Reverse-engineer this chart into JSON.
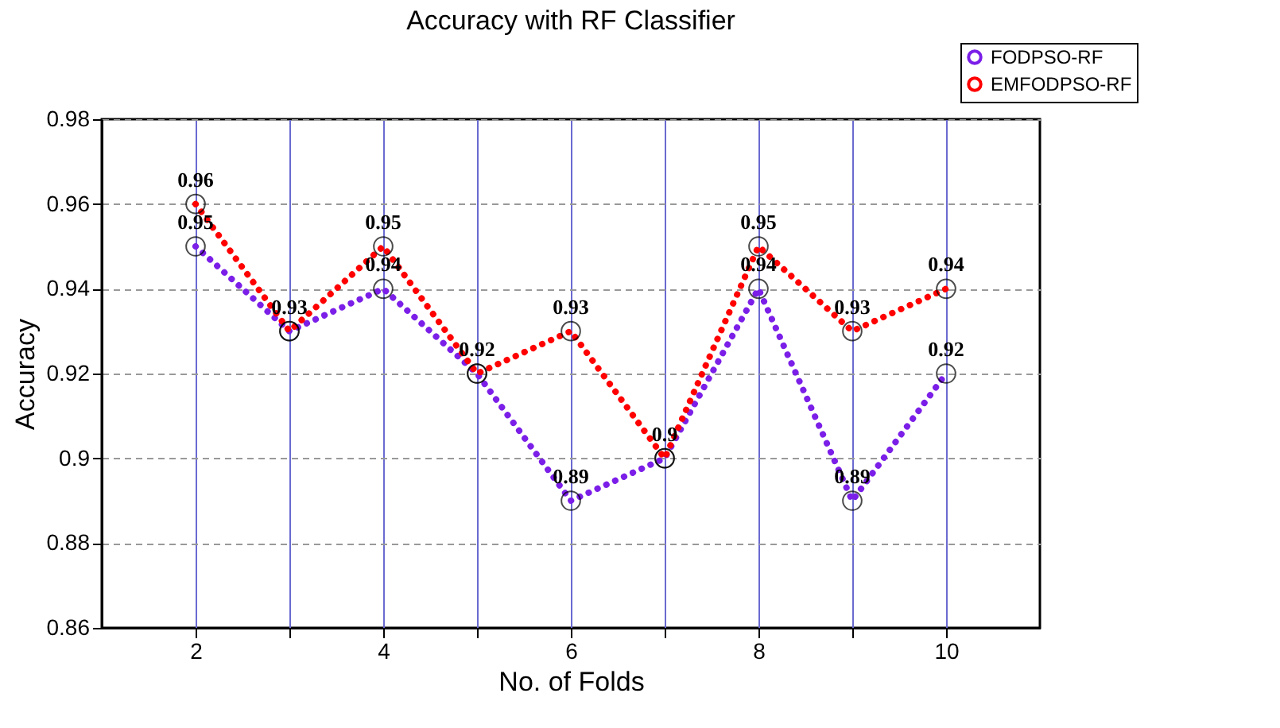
{
  "chart_data": {
    "type": "line",
    "title": "Accuracy with RF Classifier",
    "xlabel": "No. of Folds",
    "ylabel": "Accuracy",
    "x": [
      2,
      3,
      4,
      5,
      6,
      7,
      8,
      9,
      10
    ],
    "series": [
      {
        "name": "FODPSO-RF",
        "color": "#7b1fe8",
        "values": [
          0.95,
          0.93,
          0.94,
          0.92,
          0.89,
          0.9,
          0.94,
          0.89,
          0.92
        ],
        "value_labels": [
          "0.95",
          null,
          "0.94",
          null,
          "0.89",
          null,
          "0.94",
          "0.89",
          "0.92"
        ]
      },
      {
        "name": "EMFODPSO-RF",
        "color": "#ff0000",
        "values": [
          0.96,
          0.93,
          0.95,
          0.92,
          0.93,
          0.9,
          0.95,
          0.93,
          0.94
        ],
        "value_labels": [
          "0.96",
          "0.93",
          "0.95",
          "0.92",
          "0.93",
          "0.9",
          "0.95",
          "0.93",
          "0.94"
        ]
      }
    ],
    "xlim": [
      1,
      11
    ],
    "xticks": [
      2,
      {
        "value": 3,
        "label": null
      },
      4,
      {
        "value": 5,
        "label": null
      },
      6,
      {
        "value": 7,
        "label": null
      },
      8,
      {
        "value": 9,
        "label": null
      },
      10
    ],
    "ylim": [
      0.86,
      0.98
    ],
    "yticks": [
      0.86,
      0.88,
      0.9,
      0.92,
      0.94,
      0.96,
      0.98
    ],
    "grid": true,
    "legend": "top right",
    "marker": "circle",
    "line_style": "dotted"
  }
}
